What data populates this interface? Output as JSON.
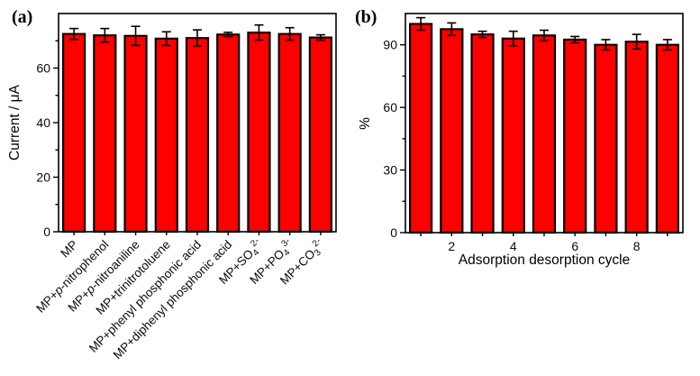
{
  "figure": {
    "background": "#ffffff",
    "frame_color": "#000000"
  },
  "chart_data": [
    {
      "type": "bar",
      "panel_label": "(a)",
      "title": "",
      "ylabel": "Current / μA",
      "xlabel": "",
      "ylim": [
        0,
        80
      ],
      "yticks": [
        0,
        20,
        40,
        60
      ],
      "yticks_minor": [
        10,
        30,
        50,
        70
      ],
      "grid": "off",
      "bar_color": "#ff0000",
      "bar_edge_color": "#000000",
      "error_bar_color": "#000000",
      "categories": [
        "MP",
        "MP+p-nitrophenol",
        "MP+p-nitroaniline",
        "MP+trinitrotoluene",
        "MP+phenyl phosphonic acid",
        "MP+diphenyl phosphonic acid",
        "MP+SO4 2-",
        "MP+PO4 3-",
        "MP+CO3 2-"
      ],
      "categories_rich": [
        [
          {
            "t": "MP"
          }
        ],
        [
          {
            "t": "MP+"
          },
          {
            "t": "p",
            "italic": true
          },
          {
            "t": "-nitrophenol"
          }
        ],
        [
          {
            "t": "MP+"
          },
          {
            "t": "p",
            "italic": true
          },
          {
            "t": "-nitroaniline"
          }
        ],
        [
          {
            "t": "MP+trinitrotoluene"
          }
        ],
        [
          {
            "t": "MP+phenyl phosphonic acid"
          }
        ],
        [
          {
            "t": "MP+diphenyl phosphonic acid"
          }
        ],
        [
          {
            "t": "MP+SO"
          },
          {
            "t": "4",
            "script": "sub"
          },
          {
            "t": "2-",
            "script": "sup"
          }
        ],
        [
          {
            "t": "MP+PO"
          },
          {
            "t": "4",
            "script": "sub"
          },
          {
            "t": "3-",
            "script": "sup"
          }
        ],
        [
          {
            "t": "MP+CO"
          },
          {
            "t": "3",
            "script": "sub"
          },
          {
            "t": "2-",
            "script": "sup"
          }
        ]
      ],
      "values": [
        72.5,
        72,
        71.8,
        70.8,
        71,
        72.3,
        73,
        72.5,
        71.2
      ],
      "errors": [
        2,
        2.5,
        3.5,
        2.5,
        3,
        0.8,
        2.8,
        2.3,
        1
      ]
    },
    {
      "type": "bar",
      "panel_label": "(b)",
      "title": "",
      "ylabel": "%",
      "xlabel": "Adsorption desorption cycle",
      "ylim": [
        0,
        105
      ],
      "yticks": [
        0,
        30,
        60,
        90
      ],
      "yticks_minor": [
        15,
        45,
        75
      ],
      "grid": "off",
      "bar_color": "#ff0000",
      "bar_edge_color": "#000000",
      "error_bar_color": "#000000",
      "x": [
        1,
        2,
        3,
        4,
        5,
        6,
        7,
        8,
        9
      ],
      "xticks": [
        2,
        4,
        6,
        8
      ],
      "values": [
        100,
        97.5,
        95,
        93,
        94.5,
        92.5,
        90,
        91.5,
        90
      ],
      "errors": [
        3,
        3,
        1.5,
        3.5,
        2.5,
        1.5,
        2.5,
        3.5,
        2.5
      ]
    }
  ]
}
